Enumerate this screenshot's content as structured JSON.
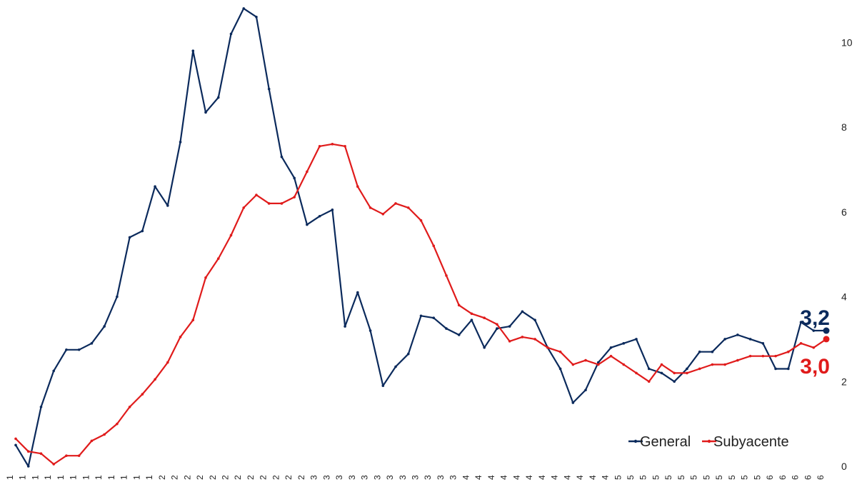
{
  "chart_data": {
    "type": "line",
    "title": "",
    "xlabel": "",
    "ylabel": "",
    "ylim": [
      0,
      11
    ],
    "yticks": [
      0,
      2,
      4,
      6,
      8,
      10
    ],
    "grid": false,
    "legend_position": "bottom-right",
    "x_tick_labels": [
      "1",
      "1",
      "1",
      "1",
      "1",
      "1",
      "1",
      "1",
      "1",
      "1",
      "1",
      "1",
      "2",
      "2",
      "2",
      "2",
      "2",
      "2",
      "2",
      "2",
      "2",
      "2",
      "2",
      "2",
      "3",
      "3",
      "3",
      "3",
      "3",
      "3",
      "3",
      "3",
      "3",
      "3",
      "3",
      "3",
      "4",
      "4",
      "4",
      "4",
      "4",
      "4",
      "4",
      "4",
      "4",
      "4",
      "4",
      "4",
      "5",
      "5",
      "5",
      "5",
      "5",
      "5",
      "5",
      "5",
      "5",
      "5",
      "5",
      "5",
      "6",
      "6",
      "6",
      "6",
      "6"
    ],
    "series": [
      {
        "name": "General",
        "color": "#0b2a5c",
        "values": [
          0.5,
          0.0,
          1.4,
          2.25,
          2.75,
          2.75,
          2.9,
          3.3,
          4.0,
          5.4,
          5.55,
          6.6,
          6.15,
          7.65,
          9.8,
          8.35,
          8.7,
          10.2,
          10.8,
          10.6,
          8.9,
          7.3,
          6.8,
          5.7,
          5.9,
          6.05,
          3.3,
          4.1,
          3.2,
          1.9,
          2.35,
          2.65,
          3.55,
          3.5,
          3.25,
          3.1,
          3.45,
          2.8,
          3.25,
          3.3,
          3.65,
          3.45,
          2.8,
          2.3,
          1.5,
          1.8,
          2.45,
          2.8,
          2.9,
          3.0,
          2.3,
          2.2,
          2.0,
          2.3,
          2.7,
          2.7,
          3.0,
          3.1,
          3.0,
          2.9,
          2.3,
          2.3,
          3.4,
          3.2,
          3.2
        ]
      },
      {
        "name": "Subyacente",
        "color": "#e01b1b",
        "values": [
          0.65,
          0.35,
          0.3,
          0.05,
          0.25,
          0.25,
          0.6,
          0.75,
          1.0,
          1.4,
          1.7,
          2.05,
          2.45,
          3.05,
          3.45,
          4.45,
          4.9,
          5.45,
          6.1,
          6.4,
          6.2,
          6.2,
          6.35,
          6.95,
          7.55,
          7.6,
          7.55,
          6.6,
          6.1,
          5.95,
          6.2,
          6.1,
          5.8,
          5.2,
          4.5,
          3.8,
          3.6,
          3.5,
          3.35,
          2.95,
          3.05,
          3.0,
          2.8,
          2.7,
          2.4,
          2.5,
          2.4,
          2.6,
          2.4,
          2.2,
          2.0,
          2.4,
          2.2,
          2.2,
          2.3,
          2.4,
          2.4,
          2.5,
          2.6,
          2.6,
          2.6,
          2.7,
          2.9,
          2.8,
          3.0
        ]
      }
    ],
    "end_labels": [
      {
        "series": "General",
        "text": "3,2",
        "color": "#0b2a5c"
      },
      {
        "series": "Subyacente",
        "text": "3,0",
        "color": "#e01b1b"
      }
    ]
  }
}
